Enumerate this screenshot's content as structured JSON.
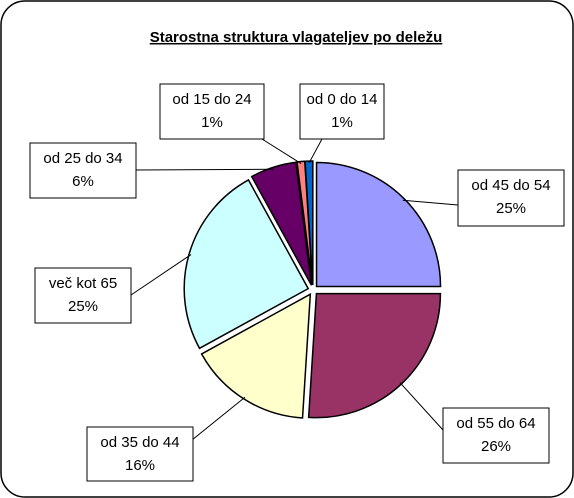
{
  "chart_data": {
    "type": "pie",
    "title": "Starostna struktura vlagateljev po deležu",
    "categories": [
      "od 45 do 54",
      "od 55 do 64",
      "od 35 do 44",
      "več kot 65",
      "od 25 do 34",
      "od 15 do 24",
      "od 0 do 14"
    ],
    "values": [
      25,
      26,
      16,
      25,
      6,
      1,
      1
    ],
    "value_labels": [
      "25%",
      "26%",
      "16%",
      "25%",
      "6%",
      "1%",
      "1%"
    ],
    "colors": [
      "#9999ff",
      "#993366",
      "#ffffcc",
      "#ccffff",
      "#660066",
      "#ff8080",
      "#0066cc"
    ]
  }
}
